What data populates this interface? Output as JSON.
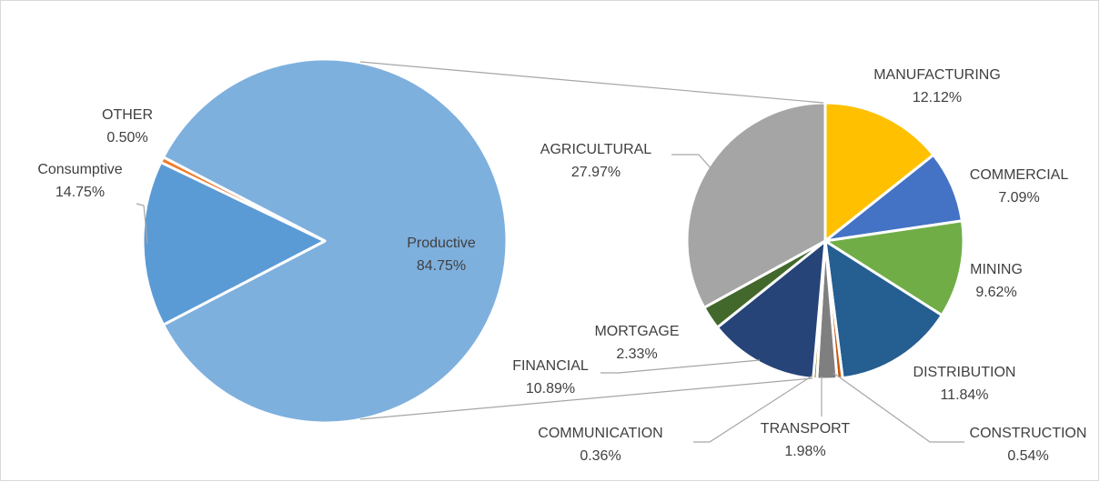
{
  "chart_data": [
    {
      "type": "pie",
      "categories": [
        "Productive",
        "Consumptive",
        "OTHER"
      ],
      "values": [
        84.75,
        14.75,
        0.5
      ],
      "value_labels": [
        "84.75%",
        "14.75%",
        "0.50%"
      ],
      "colors": [
        "#7eb0de",
        "#5b9bd5",
        "#ed7d31"
      ]
    },
    {
      "type": "pie",
      "categories": [
        "MANUFACTURING",
        "COMMERCIAL",
        "MINING",
        "DISTRIBUTION",
        "CONSTRUCTION",
        "TRANSPORT",
        "COMMUNICATION",
        "FINANCIAL",
        "MORTGAGE",
        "AGRICULTURAL"
      ],
      "values": [
        12.12,
        7.09,
        9.62,
        11.84,
        0.54,
        1.98,
        0.36,
        10.89,
        2.33,
        27.97
      ],
      "value_labels": [
        "12.12%",
        "7.09%",
        "9.62%",
        "11.84%",
        "0.54%",
        "1.98%",
        "0.36%",
        "10.89%",
        "2.33%",
        "27.97%"
      ],
      "colors": [
        "#ffc000",
        "#4472c4",
        "#70ad47",
        "#255e91",
        "#c55a11",
        "#7f7f7f",
        "#997300",
        "#264478",
        "#43682b",
        "#a5a5a5"
      ]
    }
  ]
}
